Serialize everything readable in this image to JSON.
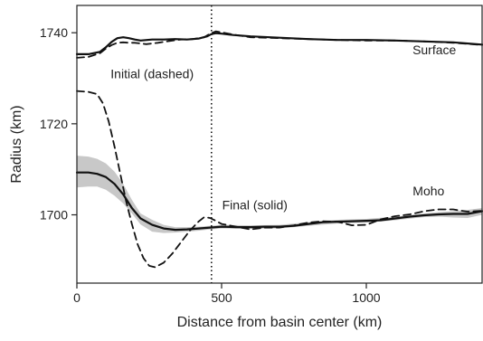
{
  "chart_data": {
    "type": "line",
    "title": "",
    "xlabel": "Distance from basin center (km)",
    "ylabel": "Radius (km)",
    "xlim": [
      0,
      1400
    ],
    "ylim": [
      1685,
      1746
    ],
    "xticks": [
      0,
      500,
      1000
    ],
    "yticks": [
      1700,
      1720,
      1740
    ],
    "legend": "none",
    "grid": false,
    "colors": {
      "line": "#111111",
      "band": "#c8c8c8",
      "axis": "#222222"
    },
    "annotations": [
      {
        "text": "Surface",
        "x": 1235,
        "y": 1735.3
      },
      {
        "text": "Initial (dashed)",
        "x": 260,
        "y": 1730
      },
      {
        "text": "Final (solid)",
        "x": 615,
        "y": 1701.2
      },
      {
        "text": "Moho",
        "x": 1215,
        "y": 1704.3
      }
    ],
    "vline": {
      "x": 465,
      "style": "dotted"
    },
    "series": [
      {
        "style": "solid",
        "x": [
          0,
          40,
          80,
          100,
          120,
          140,
          160,
          180,
          200,
          220,
          260,
          300,
          340,
          380,
          420,
          450,
          465,
          480,
          500,
          540,
          600,
          700,
          800,
          900,
          1000,
          1100,
          1200,
          1300,
          1400
        ],
        "y": [
          1735.3,
          1735.3,
          1735.8,
          1736.8,
          1738,
          1738.8,
          1739,
          1738.8,
          1738.5,
          1738.3,
          1738.5,
          1738.5,
          1738.6,
          1738.5,
          1738.7,
          1739.2,
          1739.7,
          1739.9,
          1739.8,
          1739.5,
          1739.2,
          1738.9,
          1738.6,
          1738.4,
          1738.4,
          1738.3,
          1738.1,
          1737.9,
          1737.4
        ]
      },
      {
        "style": "dashed",
        "x": [
          0,
          40,
          80,
          100,
          120,
          140,
          160,
          180,
          200,
          240,
          280,
          320,
          360,
          400,
          440,
          460,
          480,
          500,
          540,
          600,
          700,
          800,
          900,
          1000,
          1100,
          1200,
          1300,
          1400
        ],
        "y": [
          1734.5,
          1734.7,
          1735.5,
          1736.5,
          1737.3,
          1737.8,
          1737.9,
          1737.8,
          1737.8,
          1737.5,
          1737.8,
          1738.2,
          1738.5,
          1738.6,
          1739,
          1739.8,
          1740.3,
          1740.1,
          1739.6,
          1739,
          1738.8,
          1738.6,
          1738.4,
          1738.3,
          1738.3,
          1738.1,
          1737.8,
          1737.3
        ]
      },
      {
        "style": "dashed",
        "x": [
          0,
          40,
          70,
          90,
          110,
          130,
          150,
          170,
          190,
          210,
          230,
          250,
          270,
          300,
          330,
          360,
          390,
          420,
          440,
          460,
          480,
          500,
          550,
          600,
          650,
          700,
          750,
          800,
          850,
          900,
          950,
          1000,
          1050,
          1100,
          1150,
          1200,
          1250,
          1300,
          1350,
          1400
        ],
        "y": [
          1727.2,
          1727,
          1726.5,
          1724.5,
          1720.5,
          1715,
          1709,
          1703,
          1698,
          1693.5,
          1690.5,
          1688.8,
          1688.5,
          1689.5,
          1691.5,
          1694,
          1696.5,
          1698.5,
          1699.5,
          1699.3,
          1698.7,
          1698,
          1697.4,
          1696.8,
          1697.2,
          1697.2,
          1697.7,
          1698.3,
          1698.6,
          1698.5,
          1697.7,
          1697.8,
          1699,
          1699.7,
          1700.1,
          1700.8,
          1701.2,
          1701.2,
          1700.7,
          1700.9
        ]
      },
      {
        "style": "solid",
        "x": [
          0,
          40,
          70,
          100,
          130,
          160,
          190,
          220,
          260,
          300,
          340,
          380,
          420,
          460,
          500,
          550,
          600,
          650,
          700,
          750,
          800,
          850,
          900,
          950,
          1000,
          1050,
          1100,
          1150,
          1200,
          1250,
          1300,
          1350,
          1400
        ],
        "y": [
          1709.3,
          1709.3,
          1709,
          1708.3,
          1706.8,
          1704.5,
          1701.5,
          1699.2,
          1697.8,
          1697,
          1696.7,
          1696.8,
          1697,
          1697.2,
          1697.4,
          1697.3,
          1697.3,
          1697.4,
          1697.4,
          1697.6,
          1698,
          1698.4,
          1698.5,
          1698.6,
          1698.7,
          1698.8,
          1699.2,
          1699.6,
          1699.9,
          1700.1,
          1700.2,
          1700.2,
          1700.8
        ]
      }
    ],
    "band": {
      "x": [
        0,
        40,
        70,
        100,
        130,
        160,
        190,
        220,
        260,
        300,
        340,
        380,
        420,
        460,
        500,
        600,
        700,
        800,
        900,
        1000,
        1100,
        1200,
        1250,
        1300,
        1350,
        1400
      ],
      "y_low": [
        1706,
        1706.2,
        1706.2,
        1705.5,
        1704.2,
        1702.5,
        1700.3,
        1697.9,
        1696.3,
        1696,
        1696.1,
        1696.3,
        1696.5,
        1696.8,
        1697,
        1696.9,
        1697,
        1697.6,
        1698.1,
        1698.3,
        1698.8,
        1699.5,
        1699.6,
        1699.4,
        1699.3,
        1700
      ],
      "y_high": [
        1713,
        1712.8,
        1712.3,
        1711.3,
        1709.5,
        1706.8,
        1703.3,
        1700.3,
        1698.9,
        1697.8,
        1697.3,
        1697.3,
        1697.4,
        1697.6,
        1697.8,
        1697.7,
        1697.8,
        1698.4,
        1698.9,
        1699.1,
        1699.6,
        1700.3,
        1700.6,
        1700.8,
        1701.1,
        1701.5
      ]
    }
  }
}
